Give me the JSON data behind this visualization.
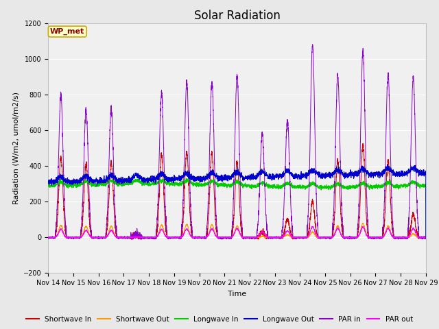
{
  "title": "Solar Radiation",
  "ylabel": "Radiation (W/m2, umol/m2/s)",
  "xlabel": "Time",
  "station_label": "WP_met",
  "ylim": [
    -200,
    1200
  ],
  "yticks": [
    -200,
    0,
    200,
    400,
    600,
    800,
    1000,
    1200
  ],
  "xticklabels": [
    "Nov 14",
    "Nov 15",
    "Nov 16",
    "Nov 17",
    "Nov 18",
    "Nov 19",
    "Nov 20",
    "Nov 21",
    "Nov 22",
    "Nov 23",
    "Nov 24",
    "Nov 25",
    "Nov 26",
    "Nov 27",
    "Nov 28",
    "Nov 29"
  ],
  "colors": {
    "shortwave_in": "#cc0000",
    "shortwave_out": "#ff9900",
    "longwave_in": "#00cc00",
    "longwave_out": "#0000cc",
    "par_in": "#8800cc",
    "par_out": "#ff00ff"
  },
  "legend_labels": [
    "Shortwave In",
    "Shortwave Out",
    "Longwave In",
    "Longwave Out",
    "PAR in",
    "PAR out"
  ],
  "fig_bg_color": "#e8e8e8",
  "plot_bg_color": "#f0f0f0",
  "title_fontsize": 12,
  "label_fontsize": 8,
  "tick_fontsize": 7
}
